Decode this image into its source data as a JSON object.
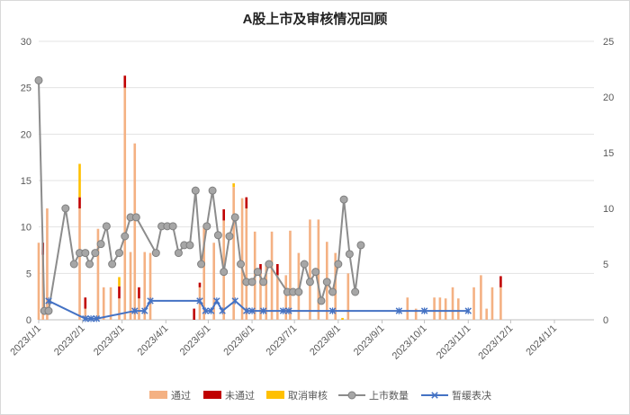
{
  "chart_data": {
    "type": "bar+line",
    "title": "A股上市及审核情况回顾",
    "xlabel": "",
    "ylabel": "",
    "y_left_lim": [
      0,
      30
    ],
    "y_left_ticks": [
      0,
      5,
      10,
      15,
      20,
      25,
      30
    ],
    "y_right_lim": [
      0,
      25
    ],
    "y_right_ticks": [
      0,
      5,
      10,
      15,
      20,
      25
    ],
    "x_range": [
      "2023-01-01",
      "2024-01-29"
    ],
    "x_tick_labels": [
      "2023/1/1",
      "2023/2/1",
      "2023/3/1",
      "2023/4/1",
      "2023/5/1",
      "2023/6/1",
      "2023/7/1",
      "2023/8/1",
      "2023/9/1",
      "2023/10/1",
      "2023/11/1",
      "2023/12/1",
      "2024/1/1"
    ],
    "gridlines": true,
    "legend_position": "bottom",
    "legend": [
      "通过",
      "未通过",
      "取消审核",
      "上市数量",
      "暂缓表决"
    ],
    "colors": {
      "通过": "#f4b183",
      "未通过": "#c00000",
      "取消审核": "#ffc000",
      "上市数量": "#8c8c8c",
      "暂缓表决": "#4472c4"
    },
    "bar_series": [
      {
        "name": "通过",
        "axis": "left",
        "points": [
          [
            "2023-01-01",
            8.3
          ],
          [
            "2023-01-04",
            7.0
          ],
          [
            "2023-01-07",
            12.0
          ],
          [
            "2023-01-30",
            12.0
          ],
          [
            "2023-02-03",
            1.2
          ],
          [
            "2023-02-12",
            9.8
          ],
          [
            "2023-02-16",
            3.5
          ],
          [
            "2023-02-21",
            3.5
          ],
          [
            "2023-02-27",
            2.3
          ],
          [
            "2023-03-03",
            25.0
          ],
          [
            "2023-03-07",
            7.3
          ],
          [
            "2023-03-10",
            19.0
          ],
          [
            "2023-03-13",
            2.3
          ],
          [
            "2023-03-17",
            7.3
          ],
          [
            "2023-03-21",
            7.2
          ],
          [
            "2023-04-25",
            3.5
          ],
          [
            "2023-04-28",
            10.2
          ],
          [
            "2023-05-05",
            8.3
          ],
          [
            "2023-05-12",
            10.7
          ],
          [
            "2023-05-19",
            14.3
          ],
          [
            "2023-05-25",
            13.1
          ],
          [
            "2023-05-28",
            12.0
          ],
          [
            "2023-06-03",
            9.5
          ],
          [
            "2023-06-07",
            5.0
          ],
          [
            "2023-06-11",
            6.0
          ],
          [
            "2023-06-15",
            9.5
          ],
          [
            "2023-06-19",
            4.8
          ],
          [
            "2023-06-25",
            4.8
          ],
          [
            "2023-06-28",
            9.6
          ],
          [
            "2023-07-04",
            7.2
          ],
          [
            "2023-07-12",
            10.8
          ],
          [
            "2023-07-18",
            10.8
          ],
          [
            "2023-07-24",
            8.4
          ],
          [
            "2023-07-30",
            7.2
          ],
          [
            "2023-08-08",
            5.0
          ],
          [
            "2023-09-19",
            2.4
          ],
          [
            "2023-09-25",
            1.2
          ],
          [
            "2023-10-08",
            2.4
          ],
          [
            "2023-10-12",
            2.4
          ],
          [
            "2023-10-16",
            2.3
          ],
          [
            "2023-10-21",
            3.5
          ],
          [
            "2023-10-25",
            2.3
          ],
          [
            "2023-11-05",
            3.5
          ],
          [
            "2023-11-10",
            4.8
          ],
          [
            "2023-11-14",
            1.2
          ],
          [
            "2023-11-18",
            3.5
          ],
          [
            "2023-11-24",
            3.5
          ]
        ]
      },
      {
        "name": "未通过",
        "axis": "left",
        "points": [
          [
            "2023-01-04",
            1.3
          ],
          [
            "2023-01-30",
            1.2
          ],
          [
            "2023-02-03",
            1.2
          ],
          [
            "2023-02-27",
            1.3
          ],
          [
            "2023-03-03",
            1.3
          ],
          [
            "2023-03-13",
            1.2
          ],
          [
            "2023-04-21",
            1.2
          ],
          [
            "2023-04-25",
            0.5
          ],
          [
            "2023-05-12",
            1.2
          ],
          [
            "2023-05-28",
            1.2
          ],
          [
            "2023-06-07",
            1.0
          ],
          [
            "2023-06-19",
            1.2
          ],
          [
            "2023-11-24",
            1.2
          ]
        ]
      },
      {
        "name": "取消审核",
        "axis": "left",
        "points": [
          [
            "2023-01-30",
            3.6
          ],
          [
            "2023-02-27",
            1.0
          ],
          [
            "2023-05-19",
            0.4
          ],
          [
            "2023-08-04",
            0.2
          ]
        ]
      }
    ],
    "line_series": [
      {
        "name": "上市数量",
        "axis": "right",
        "points": [
          [
            "2023-01-01",
            21.5
          ],
          [
            "2023-01-05",
            0.8
          ],
          [
            "2023-01-08",
            0.8
          ],
          [
            "2023-01-20",
            10.0
          ],
          [
            "2023-01-26",
            5.0
          ],
          [
            "2023-01-30",
            6.0
          ],
          [
            "2023-02-03",
            6.0
          ],
          [
            "2023-02-06",
            5.0
          ],
          [
            "2023-02-10",
            6.0
          ],
          [
            "2023-02-14",
            6.8
          ],
          [
            "2023-02-18",
            8.4
          ],
          [
            "2023-02-22",
            5.0
          ],
          [
            "2023-02-27",
            6.0
          ],
          [
            "2023-03-03",
            7.5
          ],
          [
            "2023-03-07",
            9.2
          ],
          [
            "2023-03-11",
            9.2
          ],
          [
            "2023-03-25",
            6.0
          ],
          [
            "2023-03-29",
            8.4
          ],
          [
            "2023-04-02",
            8.4
          ],
          [
            "2023-04-06",
            8.4
          ],
          [
            "2023-04-10",
            6.0
          ],
          [
            "2023-04-14",
            6.7
          ],
          [
            "2023-04-18",
            6.7
          ],
          [
            "2023-04-22",
            11.6
          ],
          [
            "2023-04-26",
            5.0
          ],
          [
            "2023-04-30",
            8.4
          ],
          [
            "2023-05-04",
            11.6
          ],
          [
            "2023-05-08",
            7.6
          ],
          [
            "2023-05-12",
            4.3
          ],
          [
            "2023-05-16",
            7.5
          ],
          [
            "2023-05-20",
            9.2
          ],
          [
            "2023-05-24",
            5.0
          ],
          [
            "2023-05-28",
            3.4
          ],
          [
            "2023-06-01",
            3.4
          ],
          [
            "2023-06-05",
            4.3
          ],
          [
            "2023-06-09",
            3.4
          ],
          [
            "2023-06-13",
            5.0
          ],
          [
            "2023-06-26",
            2.5
          ],
          [
            "2023-06-30",
            2.5
          ],
          [
            "2023-07-04",
            2.5
          ],
          [
            "2023-07-08",
            5.0
          ],
          [
            "2023-07-12",
            3.4
          ],
          [
            "2023-07-16",
            4.3
          ],
          [
            "2023-07-20",
            1.7
          ],
          [
            "2023-07-24",
            3.4
          ],
          [
            "2023-07-28",
            2.5
          ],
          [
            "2023-08-01",
            5.0
          ],
          [
            "2023-08-05",
            10.8
          ],
          [
            "2023-08-09",
            5.9
          ],
          [
            "2023-08-13",
            2.5
          ],
          [
            "2023-08-17",
            6.7
          ]
        ]
      },
      {
        "name": "暂缓表决",
        "axis": "right",
        "points": [
          [
            "2023-01-08",
            1.7
          ],
          [
            "2023-02-03",
            0.1
          ],
          [
            "2023-02-07",
            0.1
          ],
          [
            "2023-02-11",
            0.1
          ],
          [
            "2023-03-10",
            0.8
          ],
          [
            "2023-03-17",
            0.8
          ],
          [
            "2023-03-21",
            1.7
          ],
          [
            "2023-04-25",
            1.7
          ],
          [
            "2023-04-29",
            0.8
          ],
          [
            "2023-05-03",
            0.8
          ],
          [
            "2023-05-07",
            1.7
          ],
          [
            "2023-05-11",
            0.8
          ],
          [
            "2023-05-20",
            1.7
          ],
          [
            "2023-05-28",
            0.8
          ],
          [
            "2023-06-01",
            0.8
          ],
          [
            "2023-06-09",
            0.8
          ],
          [
            "2023-06-23",
            0.8
          ],
          [
            "2023-06-27",
            0.8
          ],
          [
            "2023-07-28",
            0.8
          ],
          [
            "2023-09-13",
            0.8
          ],
          [
            "2023-10-01",
            0.8
          ],
          [
            "2023-11-01",
            0.8
          ]
        ]
      }
    ]
  }
}
